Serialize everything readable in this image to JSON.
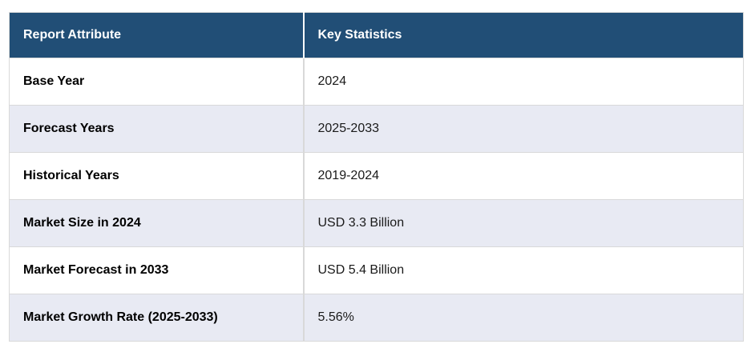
{
  "colors": {
    "header_bg": "#214e76",
    "header_text": "#ffffff",
    "row_alt_bg": "#e8eaf3",
    "border_color": "#d9d9d9",
    "attribute_text": "#000000",
    "value_text": "#1a1a1a"
  },
  "table": {
    "header": {
      "attribute_label": "Report Attribute",
      "statistics_label": "Key Statistics"
    },
    "rows": [
      {
        "attribute": "Base Year",
        "value": "2024"
      },
      {
        "attribute": "Forecast Years",
        "value": "2025-2033"
      },
      {
        "attribute": "Historical Years",
        "value": "2019-2024"
      },
      {
        "attribute": "Market Size in 2024",
        "value": "USD 3.3 Billion"
      },
      {
        "attribute": "Market Forecast in 2033",
        "value": "USD 5.4 Billion"
      },
      {
        "attribute": "Market Growth Rate (2025-2033)",
        "value": "5.56%"
      }
    ]
  },
  "chart_data": {
    "type": "table",
    "columns": [
      "Report Attribute",
      "Key Statistics"
    ],
    "rows": [
      [
        "Base Year",
        "2024"
      ],
      [
        "Forecast Years",
        "2025-2033"
      ],
      [
        "Historical Years",
        "2019-2024"
      ],
      [
        "Market Size in 2024",
        "USD 3.3 Billion"
      ],
      [
        "Market Forecast in 2033",
        "USD 5.4 Billion"
      ],
      [
        "Market Growth Rate (2025-2033)",
        "5.56%"
      ]
    ]
  }
}
